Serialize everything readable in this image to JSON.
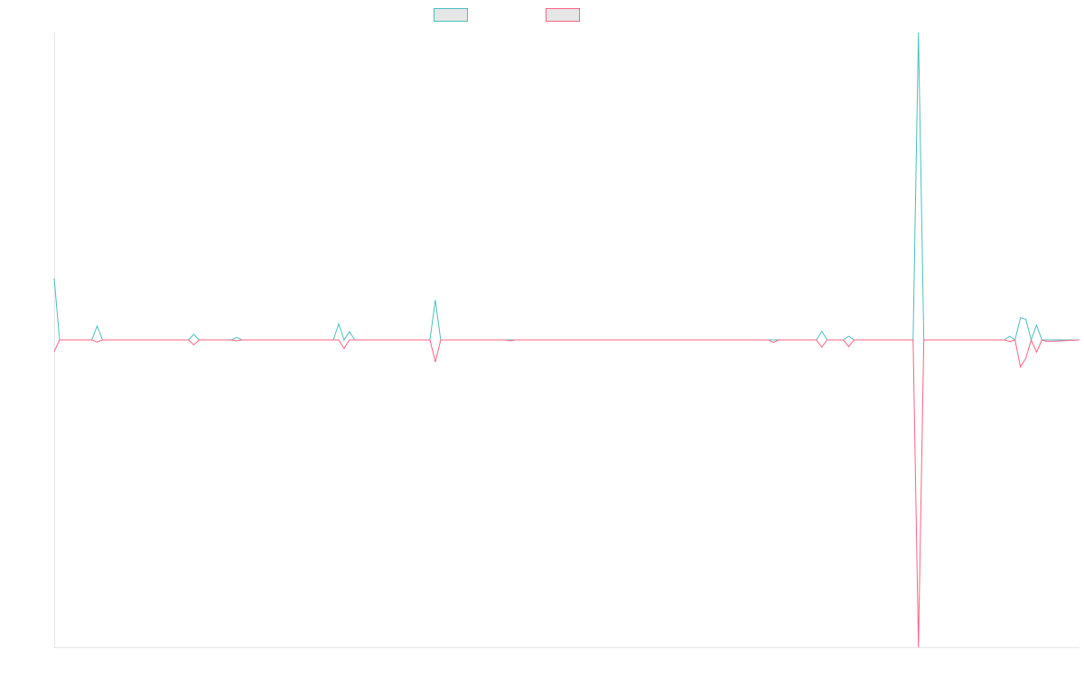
{
  "chart_data": {
    "type": "line",
    "title": "",
    "xlabel": "",
    "ylabel": "",
    "n_points": 192,
    "ylim": [
      -1.0,
      1.0
    ],
    "zero_line": true,
    "grid": false,
    "legend_placement": "top-center",
    "series": [
      {
        "color": "#4bc0c0",
        "points": [
          [
            0,
            0.2
          ],
          [
            1,
            0.0
          ],
          [
            7,
            0.0
          ],
          [
            8,
            0.045
          ],
          [
            9,
            0.0
          ],
          [
            25,
            0.0
          ],
          [
            26,
            0.018
          ],
          [
            27,
            0.0
          ],
          [
            33,
            0.0
          ],
          [
            34,
            0.008
          ],
          [
            35,
            0.0
          ],
          [
            52,
            0.0
          ],
          [
            53,
            0.052
          ],
          [
            54,
            0.0
          ],
          [
            55,
            0.027
          ],
          [
            56,
            0.0
          ],
          [
            70,
            0.0
          ],
          [
            71,
            0.13
          ],
          [
            72,
            0.0
          ],
          [
            133,
            0.0
          ],
          [
            134,
            0.0
          ],
          [
            135,
            0.0
          ],
          [
            142,
            0.0
          ],
          [
            143,
            0.028
          ],
          [
            144,
            0.0
          ],
          [
            147,
            0.0
          ],
          [
            148,
            0.012
          ],
          [
            149,
            0.0
          ],
          [
            160,
            0.0
          ],
          [
            161,
            1.0
          ],
          [
            162,
            0.0
          ],
          [
            177,
            0.0
          ],
          [
            178,
            0.012
          ],
          [
            179,
            0.0
          ],
          [
            180,
            0.072
          ],
          [
            181,
            0.067
          ],
          [
            182,
            0.0
          ],
          [
            183,
            0.048
          ],
          [
            184,
            0.0
          ],
          [
            191,
            0.0
          ]
        ]
      },
      {
        "color": "#ff6384",
        "points": [
          [
            0,
            -0.038
          ],
          [
            1,
            0.0
          ],
          [
            7,
            0.0
          ],
          [
            8,
            -0.007
          ],
          [
            9,
            0.0
          ],
          [
            25,
            0.0
          ],
          [
            26,
            -0.016
          ],
          [
            27,
            0.0
          ],
          [
            33,
            0.0
          ],
          [
            34,
            -0.003
          ],
          [
            35,
            0.0
          ],
          [
            52,
            0.0
          ],
          [
            53,
            0.0
          ],
          [
            54,
            -0.028
          ],
          [
            55,
            0.0
          ],
          [
            70,
            0.0
          ],
          [
            71,
            -0.072
          ],
          [
            72,
            0.0
          ],
          [
            84,
            0.0
          ],
          [
            85,
            -0.003
          ],
          [
            86,
            0.0
          ],
          [
            133,
            0.0
          ],
          [
            134,
            -0.008
          ],
          [
            135,
            0.0
          ],
          [
            142,
            0.0
          ],
          [
            143,
            -0.024
          ],
          [
            144,
            0.0
          ],
          [
            147,
            0.0
          ],
          [
            148,
            -0.022
          ],
          [
            149,
            0.0
          ],
          [
            160,
            0.0
          ],
          [
            161,
            -1.0
          ],
          [
            162,
            0.0
          ],
          [
            177,
            0.0
          ],
          [
            178,
            -0.005
          ],
          [
            179,
            0.0
          ],
          [
            180,
            -0.088
          ],
          [
            181,
            -0.06
          ],
          [
            182,
            0.0
          ],
          [
            183,
            -0.04
          ],
          [
            184,
            0.0
          ],
          [
            185,
            -0.005
          ],
          [
            191,
            0.0
          ]
        ]
      }
    ]
  }
}
